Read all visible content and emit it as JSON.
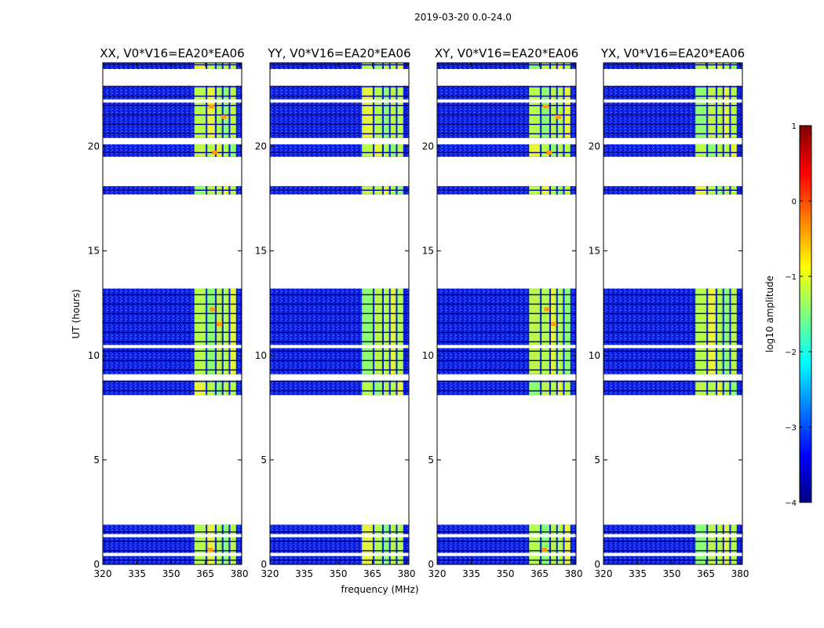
{
  "chart_data": {
    "type": "heatmap",
    "suptitle": "2019-03-20 0.0-24.0",
    "xlabel": "frequency (MHz)",
    "ylabel": "UT (hours)",
    "xlim": [
      320,
      381
    ],
    "ylim": [
      0,
      24
    ],
    "xticks": [
      320,
      335,
      350,
      365,
      380
    ],
    "yticks": [
      0,
      5,
      10,
      15,
      20
    ],
    "panels": [
      {
        "title": "XX, V0*V16=EA20*EA06",
        "polarization": "XX"
      },
      {
        "title": "YY, V0*V16=EA20*EA06",
        "polarization": "YY"
      },
      {
        "title": "XY, V0*V16=EA20*EA06",
        "polarization": "XY"
      },
      {
        "title": "YX, V0*V16=EA20*EA06",
        "polarization": "YX"
      }
    ],
    "data_time_blocks_hours": [
      [
        0.0,
        1.9
      ],
      [
        8.1,
        8.8
      ],
      [
        9.1,
        13.2
      ],
      [
        17.7,
        18.1
      ],
      [
        19.5,
        20.1
      ],
      [
        20.4,
        22.9
      ],
      [
        23.7,
        24.0
      ]
    ],
    "blanked_hours": [
      [
        0.4,
        0.55
      ],
      [
        1.3,
        1.45
      ],
      [
        10.35,
        10.5
      ],
      [
        22.1,
        22.25
      ]
    ],
    "colorbar": {
      "label": "log10 amplitude",
      "min": -4,
      "max": 1,
      "ticks": [
        1,
        0,
        -1,
        -2,
        -3,
        -4
      ],
      "tick_labels": [
        "1",
        "0",
        "−1",
        "−2",
        "−3",
        "−4"
      ],
      "colormap": "jet",
      "colors": [
        "#00007f",
        "#0000ff",
        "#007fff",
        "#00ffff",
        "#7fff7f",
        "#ffff00",
        "#ff7f00",
        "#ff0000",
        "#7f0000"
      ]
    }
  }
}
